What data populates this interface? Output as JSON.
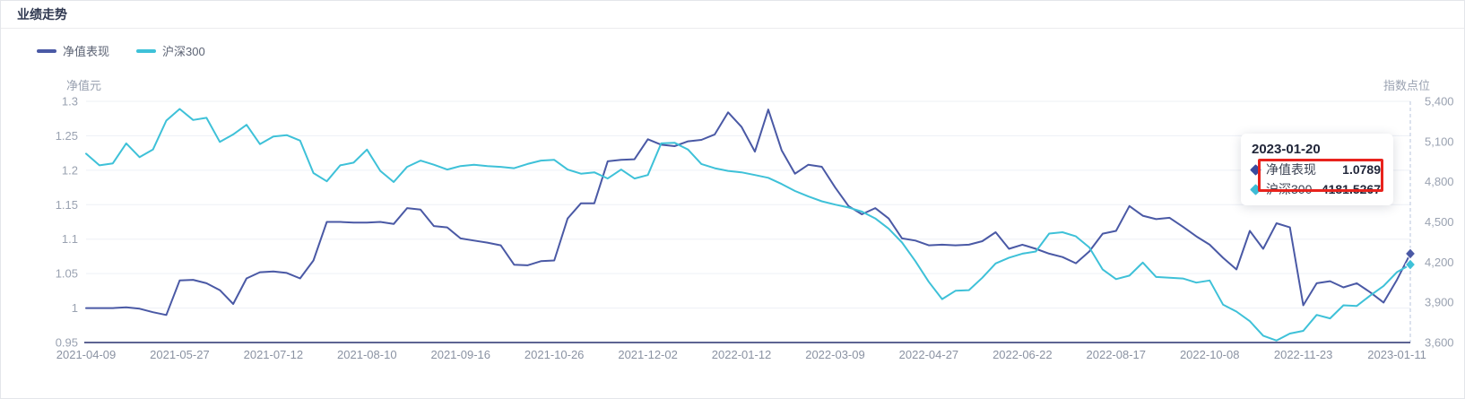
{
  "header": {
    "title": "业绩走势"
  },
  "legend": [
    {
      "label": "净值表现",
      "color": "#4a59a5"
    },
    {
      "label": "沪深300",
      "color": "#3ec1d8"
    }
  ],
  "tooltip": {
    "date": "2023-01-20",
    "rows": [
      {
        "label": "净值表现",
        "value": "1.0789",
        "color": "#3a4b9e"
      },
      {
        "label": "沪深300",
        "value": "4181.5267",
        "color": "#3fbcd6"
      }
    ],
    "highlighted_row": 0,
    "highlight_color": "#e8231d"
  },
  "chart_data": {
    "type": "line",
    "n_points": 100,
    "x_label_interval": 7,
    "x_labels": [
      "2021-04-09",
      "2021-05-27",
      "2021-07-12",
      "2021-08-10",
      "2021-09-16",
      "2021-10-26",
      "2021-12-02",
      "2022-01-12",
      "2022-03-09",
      "2022-04-27",
      "2022-06-22",
      "2022-08-17",
      "2022-10-08",
      "2022-11-23",
      "2023-01-11"
    ],
    "grid": true,
    "legend_position": "top-left",
    "yaxis_left": {
      "label": "净值元",
      "min": 0.95,
      "max": 1.3,
      "ticks": [
        "1.3",
        "1.25",
        "1.2",
        "1.15",
        "1.1",
        "1.05",
        "1",
        "0.95"
      ]
    },
    "yaxis_right": {
      "label": "指数点位",
      "min": 3600,
      "max": 5400,
      "ticks": [
        "5,400",
        "5,100",
        "4,800",
        "4,500",
        "4,200",
        "3,900",
        "3,600"
      ]
    },
    "hover_point": {
      "date": "2023-01-20",
      "values": [
        1.0789,
        4181.5267
      ]
    },
    "series": [
      {
        "name": "净值表现",
        "yaxis": "left",
        "color": "#4a59a5",
        "values": [
          1.0,
          1.0,
          1.0,
          1.001,
          0.999,
          0.994,
          0.99,
          1.04,
          1.041,
          1.036,
          1.026,
          1.006,
          1.043,
          1.052,
          1.053,
          1.051,
          1.043,
          1.069,
          1.125,
          1.125,
          1.124,
          1.124,
          1.125,
          1.122,
          1.145,
          1.143,
          1.119,
          1.117,
          1.101,
          1.098,
          1.095,
          1.091,
          1.063,
          1.062,
          1.068,
          1.069,
          1.13,
          1.152,
          1.152,
          1.213,
          1.215,
          1.216,
          1.245,
          1.237,
          1.235,
          1.242,
          1.244,
          1.252,
          1.284,
          1.263,
          1.227,
          1.288,
          1.229,
          1.195,
          1.208,
          1.205,
          1.175,
          1.148,
          1.136,
          1.145,
          1.13,
          1.101,
          1.098,
          1.091,
          1.092,
          1.091,
          1.092,
          1.097,
          1.11,
          1.086,
          1.092,
          1.086,
          1.079,
          1.074,
          1.065,
          1.082,
          1.108,
          1.112,
          1.148,
          1.134,
          1.129,
          1.131,
          1.118,
          1.104,
          1.092,
          1.073,
          1.056,
          1.112,
          1.086,
          1.123,
          1.117,
          1.004,
          1.036,
          1.039,
          1.03,
          1.036,
          1.023,
          1.008,
          1.041,
          1.0789
        ]
      },
      {
        "name": "沪深300",
        "yaxis": "right",
        "color": "#3ec1d8",
        "values": [
          5009,
          4922,
          4937,
          5086,
          4983,
          5040,
          5256,
          5343,
          5261,
          5277,
          5097,
          5153,
          5225,
          5081,
          5138,
          5148,
          5107,
          4865,
          4803,
          4922,
          4942,
          5040,
          4881,
          4798,
          4911,
          4958,
          4927,
          4891,
          4917,
          4927,
          4917,
          4911,
          4901,
          4932,
          4958,
          4963,
          4891,
          4860,
          4870,
          4824,
          4891,
          4824,
          4850,
          5086,
          5091,
          5040,
          4932,
          4901,
          4881,
          4870,
          4850,
          4829,
          4783,
          4731,
          4690,
          4654,
          4629,
          4608,
          4577,
          4526,
          4449,
          4346,
          4207,
          4053,
          3924,
          3986,
          3991,
          4083,
          4190,
          4233,
          4263,
          4279,
          4413,
          4423,
          4392,
          4310,
          4145,
          4073,
          4099,
          4197,
          4089,
          4083,
          4078,
          4047,
          4063,
          3883,
          3831,
          3759,
          3651,
          3615,
          3667,
          3687,
          3806,
          3780,
          3878,
          3873,
          3950,
          4022,
          4125,
          4181.5267
        ]
      }
    ],
    "style": {
      "gridline_color": "#edf0f6",
      "x_axis_line_color": "#5d6492",
      "pointer_line_color": "#b9c4dd",
      "y_tick_color": "#9aa2b1",
      "x_tick_color": "#8a92a2"
    }
  }
}
